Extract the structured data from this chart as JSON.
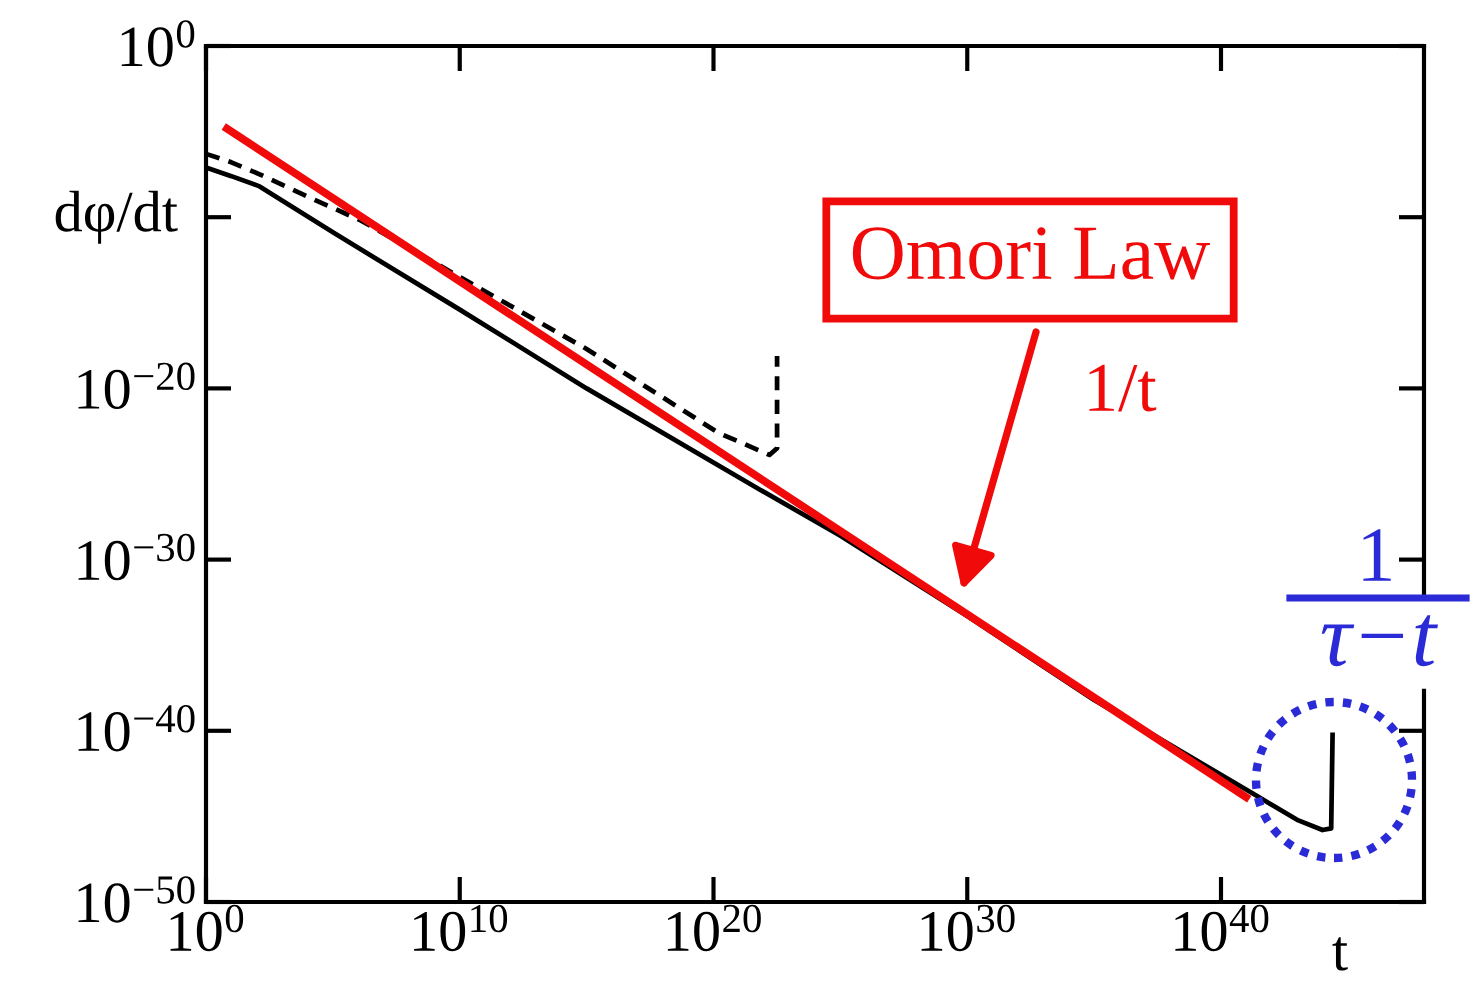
{
  "chart_data": {
    "type": "line",
    "xlabel": "t",
    "ylabel": "dφ/dt",
    "log": "xy",
    "grid": false,
    "xlim": [
      1,
      1e+48
    ],
    "xticks": [
      {
        "value": 1,
        "label": "10$^{0}$"
      },
      {
        "value": 10000000000.0,
        "label": "10$^{10}$"
      },
      {
        "value": 1e+20,
        "label": "10$^{20}$"
      },
      {
        "value": 1e+30,
        "label": "10$^{30}$"
      },
      {
        "value": 1e+40,
        "label": "10$^{40}$"
      }
    ],
    "ylim": [
      1e-50,
      1
    ],
    "yticks": [
      {
        "value": 1,
        "label": "10$^{0}$"
      },
      {
        "value": 1e-10,
        "label": null
      },
      {
        "value": 1e-20,
        "label": "10$^{−20}$"
      },
      {
        "value": 1e-30,
        "label": "10$^{−30}$"
      },
      {
        "value": 1e-40,
        "label": "10$^{−40}$"
      },
      {
        "value": 1e-50,
        "label": "10$^{−50}$"
      }
    ],
    "annotations": [
      "Omori Law",
      "1/t",
      "1",
      "τ−t"
    ],
    "series": [
      {
        "color": "#000000",
        "line_style": "dashed",
        "x": [
          1,
          10,
          130.0,
          10000.0,
          1300000.0,
          10000000000.0,
          1000000000000000.0,
          1.6e+20,
          1.6e+22,
          3.2e+22,
          3.2e+22
        ],
        "values": [
          5e-07,
          1.6e-07,
          3.2e-08,
          1.6e-09,
          6.3e-11,
          3.2e-14,
          2e-18,
          2.5e-23,
          1.3e-24,
          3.2e-24,
          7.9e-19
        ]
      },
      {
        "color": "#000000",
        "line_style": "solid",
        "x": [
          1,
          10,
          130.0,
          100000.0,
          10000000000.0,
          1000000000000000.0,
          6.3e+21,
          1e+25,
          1e+30,
          1e+35,
          3.2e+41,
          1e+43,
          1e+44,
          2.2e+44,
          2.5e+44
        ],
        "values": [
          7.9e-08,
          2.5e-08,
          6.3e-09,
          1.3e-11,
          4e-16,
          1e-20,
          1.3e-26,
          2.5e-29,
          5e-34,
          6.3e-39,
          1.3e-44,
          6.3e-46,
          1.6e-46,
          2e-46,
          7.9e-41
        ]
      },
      {
        "color": "#f00a0a",
        "line_style": "solid",
        "x": [
          5.0,
          1.3e+41
        ],
        "values": [
          2e-05,
          1e-44
        ]
      }
    ]
  }
}
